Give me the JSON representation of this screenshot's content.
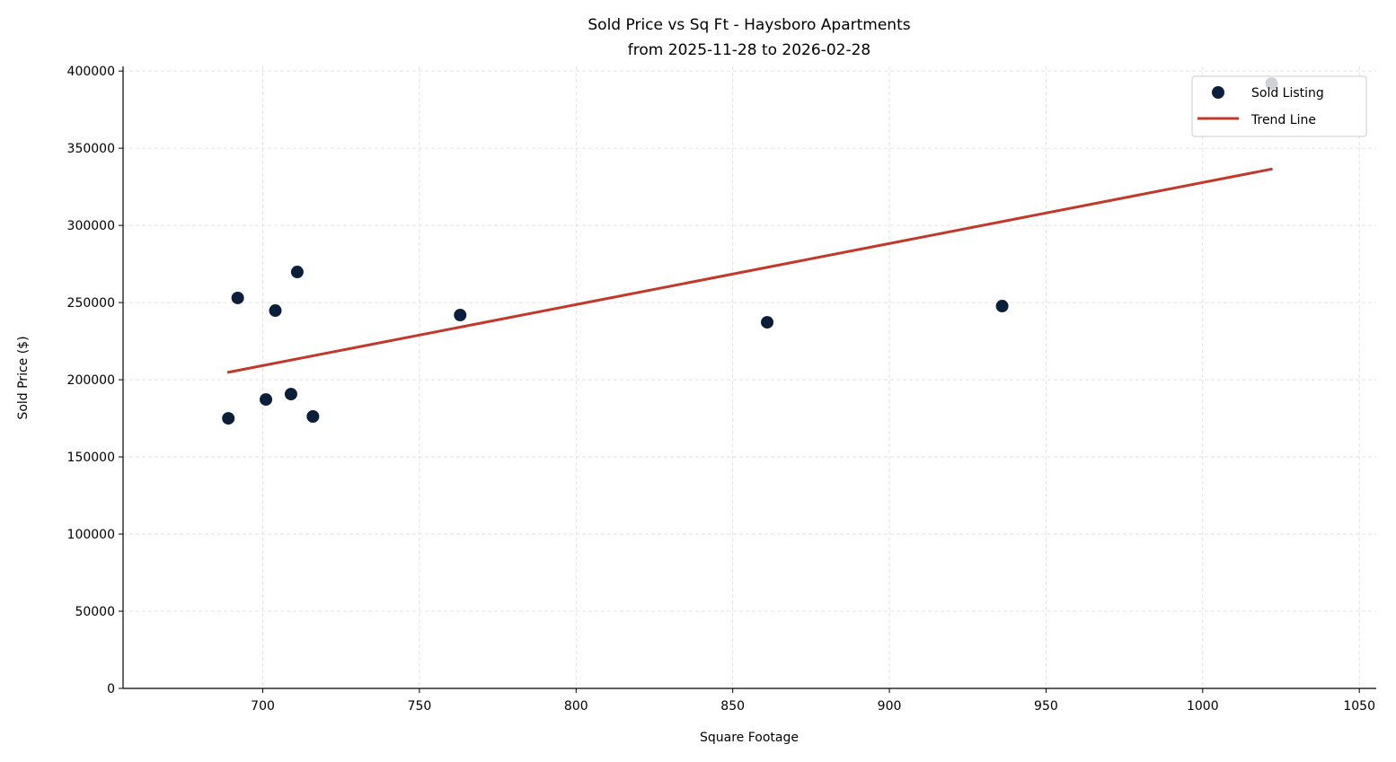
{
  "chart_data": {
    "type": "scatter",
    "title": "Sold Price vs Sq Ft - Haysboro Apartments",
    "subtitle": "from 2025-11-28 to 2026-02-28",
    "xlabel": "Square Footage",
    "ylabel": "Sold Price ($)",
    "xlim": [
      655.4,
      1055.4
    ],
    "ylim": [
      0,
      403000
    ],
    "xticks": [
      700,
      750,
      800,
      850,
      900,
      950,
      1000,
      1050
    ],
    "yticks": [
      0,
      50000,
      100000,
      150000,
      200000,
      250000,
      300000,
      350000,
      400000
    ],
    "grid": true,
    "legend_position": "top-right",
    "series": [
      {
        "name": "Sold Listing",
        "type": "scatter",
        "color": "#0b1f3a",
        "points": [
          [
            689,
            175000
          ],
          [
            692,
            253000
          ],
          [
            701,
            187200
          ],
          [
            704,
            244800
          ],
          [
            709,
            190700
          ],
          [
            711,
            269800
          ],
          [
            716,
            176200
          ],
          [
            763,
            241900
          ],
          [
            861,
            237200
          ],
          [
            936,
            247700
          ],
          [
            1022,
            391900
          ]
        ]
      },
      {
        "name": "Trend Line",
        "type": "line",
        "color": "#c0392b",
        "points": [
          [
            688.7,
            204700
          ],
          [
            1022.3,
            336600
          ]
        ]
      }
    ]
  }
}
